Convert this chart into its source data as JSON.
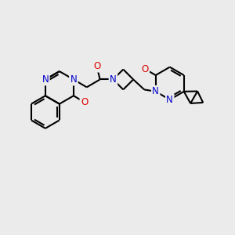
{
  "background_color": "#ebebeb",
  "bond_color": "#000000",
  "bond_width": 1.5,
  "atom_colors": {
    "N": "#0000cc",
    "O": "#dd0000",
    "C": "#000000"
  },
  "font_size": 8.5,
  "fig_size": [
    3.0,
    3.0
  ],
  "dpi": 100
}
